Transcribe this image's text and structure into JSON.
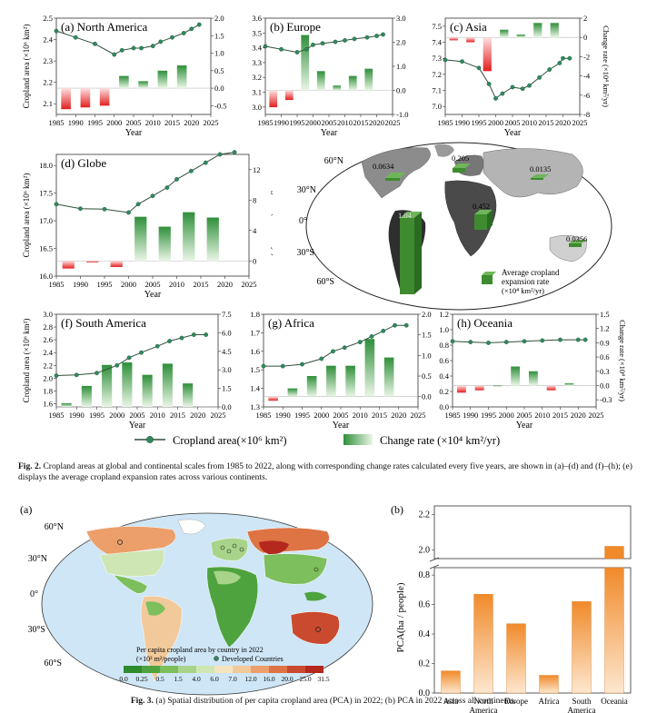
{
  "colors": {
    "line": "#2f4f3a",
    "marker": "#2f8a5e",
    "bar_pos": "#3a9a3a",
    "bar_neg": "#e23a3a",
    "ocean": "#ffffff",
    "land_gray": "#8a8a8a",
    "orange": "#f29a3a"
  },
  "chart_data": [
    {
      "type": "line+bar",
      "panel": "a",
      "title": "(a) North America",
      "xlabel": "Year",
      "ylabel_left": "Cropland area (×10⁶ km²)",
      "ylabel_right": "",
      "xticks": [
        "1985",
        "1990",
        "1995",
        "2000",
        "2005",
        "2010",
        "2015",
        "2020",
        "2025"
      ],
      "ylim_left": [
        2.05,
        2.5
      ],
      "yticks_left": [
        "2.1",
        "2.2",
        "2.3",
        "2.4",
        "2.5"
      ],
      "ylim_right": [
        -0.75,
        2.0
      ],
      "yticks_right": [
        "-0.5",
        "0.0",
        "0.5",
        "1.0",
        "1.5",
        "2.0"
      ],
      "bars_x": [
        1987.5,
        1992.5,
        1997.5,
        2002.5,
        2007.5,
        2012.5,
        2017.5
      ],
      "bars_values": [
        -0.6,
        -0.55,
        -0.5,
        0.35,
        0.2,
        0.5,
        0.65
      ],
      "line_x": [
        1985,
        1990,
        1995,
        2000,
        2002,
        2005,
        2007,
        2010,
        2012,
        2015,
        2018,
        2020,
        2022
      ],
      "line_values": [
        2.44,
        2.41,
        2.38,
        2.33,
        2.35,
        2.36,
        2.36,
        2.37,
        2.39,
        2.41,
        2.43,
        2.45,
        2.47
      ]
    },
    {
      "type": "line+bar",
      "panel": "b",
      "title": "(b) Europe",
      "xlabel": "Year",
      "ylabel_left": "",
      "ylabel_right": "",
      "xticks": [
        "1985",
        "1990",
        "1995",
        "2000",
        "2005",
        "2010",
        "2015",
        "2020",
        "2025"
      ],
      "ylim_left": [
        2.95,
        3.6
      ],
      "yticks_left": [
        "3.0",
        "3.1",
        "3.2",
        "3.3",
        "3.4",
        "3.5",
        "3.6"
      ],
      "ylim_right": [
        -1.0,
        3.0
      ],
      "yticks_right": [
        "-1.0",
        "0.0",
        "1.0",
        "2.0",
        "3.0"
      ],
      "bars_x": [
        1987.5,
        1992.5,
        1997.5,
        2002.5,
        2007.5,
        2012.5,
        2017.5
      ],
      "bars_values": [
        -0.7,
        -0.4,
        2.3,
        0.8,
        0.2,
        0.6,
        0.9
      ],
      "line_x": [
        1985,
        1990,
        1995,
        1998,
        2000,
        2003,
        2007,
        2010,
        2013,
        2017,
        2020,
        2022
      ],
      "line_values": [
        3.41,
        3.39,
        3.37,
        3.39,
        3.42,
        3.43,
        3.44,
        3.45,
        3.46,
        3.47,
        3.48,
        3.49
      ]
    },
    {
      "type": "line+bar",
      "panel": "c",
      "title": "(c) Asia",
      "xlabel": "Year",
      "ylabel_left": "",
      "ylabel_right": "Change rate (×10⁴ km²/yr)",
      "xticks": [
        "1985",
        "1990",
        "1995",
        "2000",
        "2005",
        "2010",
        "2015",
        "2020",
        "2025"
      ],
      "ylim_left": [
        6.95,
        7.55
      ],
      "yticks_left": [
        "7.0",
        "7.1",
        "7.2",
        "7.3",
        "7.4",
        "7.5"
      ],
      "ylim_right": [
        -8,
        2
      ],
      "yticks_right": [
        "-8",
        "-6",
        "-4",
        "-2",
        "0",
        "2"
      ],
      "bars_x": [
        1987.5,
        1992.5,
        1997.5,
        2002.5,
        2007.5,
        2012.5,
        2017.5
      ],
      "bars_values": [
        -0.3,
        -0.5,
        -3.5,
        0.8,
        0.3,
        1.5,
        1.5
      ],
      "line_x": [
        1985,
        1990,
        1995,
        1998,
        2000,
        2002,
        2005,
        2008,
        2010,
        2013,
        2016,
        2019,
        2020,
        2022
      ],
      "line_values": [
        7.29,
        7.28,
        7.24,
        7.14,
        7.05,
        7.08,
        7.12,
        7.11,
        7.13,
        7.18,
        7.23,
        7.27,
        7.3,
        7.3
      ]
    },
    {
      "type": "line+bar",
      "panel": "d",
      "title": "(d) Globe",
      "xlabel": "Year",
      "ylabel_left": "Cropland area (×10⁶ km²)",
      "ylabel_right": "Change rate (×10⁴ km²/yr)",
      "xticks": [
        "1985",
        "1990",
        "1995",
        "2000",
        "2005",
        "2010",
        "2015",
        "2020",
        "2025"
      ],
      "ylim_left": [
        16.0,
        18.2
      ],
      "yticks_left": [
        "16.0",
        "16.5",
        "17.0",
        "17.5",
        "18.0"
      ],
      "ylim_right": [
        -2,
        14
      ],
      "yticks_right": [
        "0",
        "4",
        "8",
        "12"
      ],
      "bars_x": [
        1987.5,
        1992.5,
        1997.5,
        2002.5,
        2007.5,
        2012.5,
        2017.5
      ],
      "bars_values": [
        -1.0,
        -0.2,
        -0.8,
        5.8,
        4.5,
        6.4,
        5.7
      ],
      "line_x": [
        1985,
        1990,
        1995,
        2000,
        2002,
        2005,
        2008,
        2010,
        2013,
        2016,
        2019,
        2022
      ],
      "line_values": [
        17.3,
        17.22,
        17.21,
        17.15,
        17.3,
        17.45,
        17.6,
        17.75,
        17.9,
        18.05,
        18.2,
        18.24
      ]
    },
    {
      "type": "line+bar",
      "panel": "f",
      "title": "(f) South America",
      "xlabel": "Year",
      "ylabel_left": "Cropland area (×10⁶ km²)",
      "ylabel_right": "",
      "xticks": [
        "1985",
        "1990",
        "1995",
        "2000",
        "2005",
        "2010",
        "2015",
        "2020",
        "2025"
      ],
      "ylim_left": [
        1.55,
        3.0
      ],
      "yticks_left": [
        "1.6",
        "1.8",
        "2.0",
        "2.2",
        "2.4",
        "2.6",
        "2.8",
        "3.0"
      ],
      "ylim_right": [
        0.0,
        7.5
      ],
      "yticks_right": [
        "0.0",
        "1.5",
        "3.0",
        "4.5",
        "6.0",
        "7.5"
      ],
      "bars_x": [
        1987.5,
        1992.5,
        1997.5,
        2002.5,
        2007.5,
        2012.5,
        2017.5
      ],
      "bars_values": [
        0.3,
        1.7,
        3.4,
        3.6,
        2.6,
        3.5,
        1.9
      ],
      "line_x": [
        1985,
        1990,
        1995,
        2000,
        2003,
        2006,
        2010,
        2013,
        2016,
        2019,
        2022
      ],
      "line_values": [
        2.04,
        2.05,
        2.08,
        2.2,
        2.32,
        2.4,
        2.5,
        2.58,
        2.63,
        2.68,
        2.68
      ]
    },
    {
      "type": "line+bar",
      "panel": "g",
      "title": "(g) Africa",
      "xlabel": "Year",
      "ylabel_left": "",
      "ylabel_right": "",
      "xticks": [
        "1985",
        "1990",
        "1995",
        "2000",
        "2005",
        "2010",
        "2015",
        "2020",
        "2025"
      ],
      "ylim_left": [
        1.3,
        1.8
      ],
      "yticks_left": [
        "1.3",
        "1.4",
        "1.5",
        "1.6",
        "1.7",
        "1.8"
      ],
      "ylim_right": [
        -0.25,
        2.0
      ],
      "yticks_right": [
        "0.0",
        "0.5",
        "1.0",
        "1.5",
        "2.0"
      ],
      "bars_x": [
        1987.5,
        1992.5,
        1997.5,
        2002.5,
        2007.5,
        2012.5,
        2017.5
      ],
      "bars_values": [
        -0.1,
        0.2,
        0.5,
        0.75,
        0.75,
        1.4,
        0.95
      ],
      "line_x": [
        1985,
        1990,
        1995,
        2000,
        2003,
        2006,
        2010,
        2013,
        2016,
        2019,
        2022
      ],
      "line_values": [
        1.52,
        1.52,
        1.53,
        1.56,
        1.6,
        1.62,
        1.65,
        1.68,
        1.71,
        1.74,
        1.74
      ]
    },
    {
      "type": "line+bar",
      "panel": "h",
      "title": "(h) Oceania",
      "xlabel": "Year",
      "ylabel_left": "",
      "ylabel_right": "Change rate (×10⁴ km²/yr)",
      "xticks": [
        "1985",
        "1990",
        "1995",
        "2000",
        "2005",
        "2010",
        "2015",
        "2020",
        "2025"
      ],
      "ylim_left": [
        0.0,
        1.2
      ],
      "yticks_left": [
        "0.0",
        "0.2",
        "0.4",
        "0.6",
        "0.8",
        "1.0",
        "1.2"
      ],
      "ylim_right": [
        -0.45,
        1.5
      ],
      "yticks_right": [
        "-0.3",
        "0.0",
        "0.3",
        "0.6",
        "0.9",
        "1.2",
        "1.5"
      ],
      "bars_x": [
        1987.5,
        1992.5,
        1997.5,
        2002.5,
        2007.5,
        2012.5,
        2017.5
      ],
      "bars_values": [
        -0.15,
        -0.1,
        0.0,
        0.4,
        0.3,
        -0.1,
        0.05
      ],
      "line_x": [
        1985,
        1990,
        1995,
        2000,
        2005,
        2010,
        2015,
        2020,
        2022
      ],
      "line_values": [
        0.85,
        0.84,
        0.83,
        0.84,
        0.85,
        0.86,
        0.87,
        0.87,
        0.87
      ]
    },
    {
      "type": "bar",
      "panel": "fig3b",
      "categories": [
        "Asia",
        "North America",
        "Europe",
        "Africa",
        "South America",
        "Oceania"
      ],
      "values": [
        0.15,
        0.67,
        0.47,
        0.12,
        0.62,
        2.02
      ],
      "ylabel": "PCA(ha / people)",
      "yticks_lower": [
        "0.0",
        "0.2",
        "0.4",
        "0.6",
        "0.8"
      ],
      "yticks_upper": [
        "2.0",
        "2.2"
      ],
      "broken_axis": true
    }
  ],
  "legend": {
    "line_label": "Cropland area(×10⁶ km²)",
    "bar_label": "Change rate (×10⁴ km²/yr)"
  },
  "map_e": {
    "label": "(e)",
    "lat_labels": [
      "60°N",
      "30°N",
      "0°",
      "30°S",
      "60°S"
    ],
    "values": {
      "north_america": "0.0634",
      "europe": "0.205",
      "asia": "0.0135",
      "africa": "0.452",
      "south_america": "1.04",
      "oceania": "0.0356"
    },
    "legend_line1": "Average cropland",
    "legend_line2": "expansion rate",
    "legend_line3": "(×10⁴ km²/yr)"
  },
  "caption_fig2": {
    "label": "Fig. 2.",
    "text": "Cropland areas at global and continental scales from 1985 to 2022, along with corresponding change rates calculated every five years, are shown in (a)–(d) and (f)–(h); (e) displays the average cropland expansion rates across various continents."
  },
  "fig3": {
    "panel_a_label": "(a)",
    "panel_b_label": "(b)",
    "lat_labels": [
      "60°N",
      "30°N",
      "0°",
      "30°S",
      "60°S"
    ],
    "legend_title": "Per capita cropland area by country in 2022",
    "legend_unit": "(×10³ m²/people)",
    "legend_dev": "Developed Countries",
    "legend_ticks": [
      "0.0",
      "0.25",
      "0.5",
      "1.5",
      "4.0",
      "6.0",
      "7.0",
      "12.0",
      "16.0",
      "20.0",
      "25.0",
      "31.5"
    ],
    "legend_colors": [
      "#2e8b2e",
      "#4fa33f",
      "#7cbf5c",
      "#a8d48a",
      "#cde6b4",
      "#f4e4c0",
      "#f2c99a",
      "#ec9f6a",
      "#de7444",
      "#c94a2e",
      "#b4281e"
    ]
  },
  "caption_fig3": {
    "label": "Fig. 3.",
    "text": "(a) Spatial distribution of per capita cropland area (PCA) in 2022; (b) PCA in 2022 across all continents."
  }
}
